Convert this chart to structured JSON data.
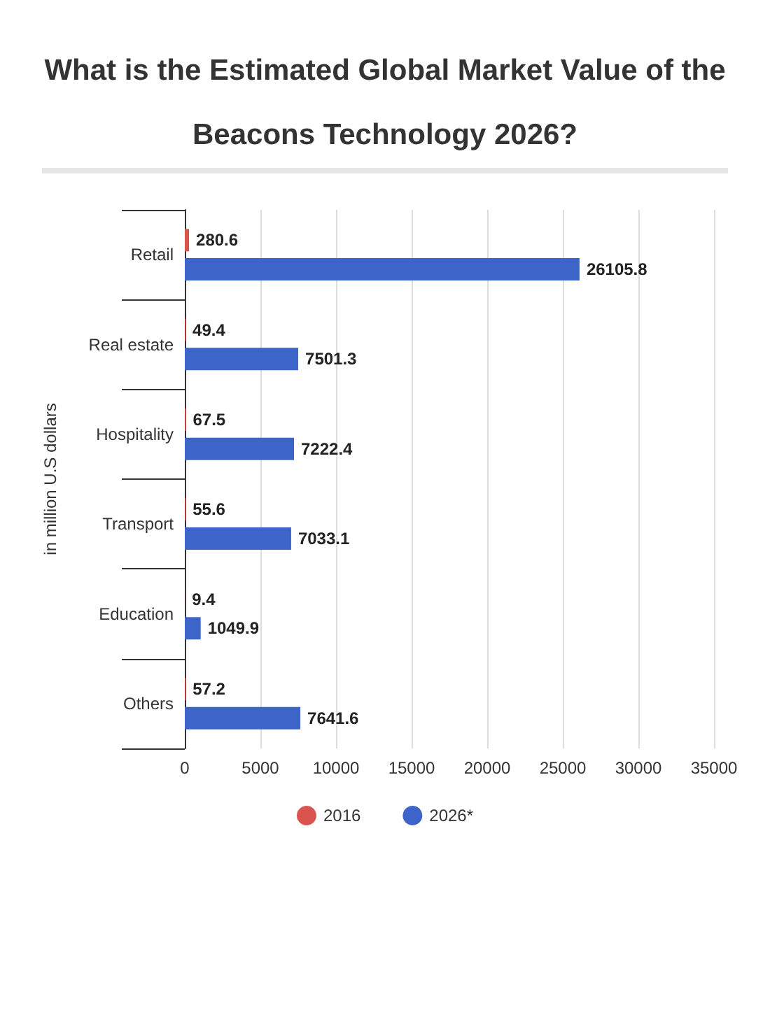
{
  "chart_data": {
    "type": "bar",
    "orientation": "horizontal",
    "title": "What is the Estimated Global Market Value of the Beacons Technology 2026?",
    "ylabel": "in million U.S dollars",
    "categories": [
      "Retail",
      "Real estate",
      "Hospitality",
      "Transport",
      "Education",
      "Others"
    ],
    "series": [
      {
        "name": "2016",
        "color": "#d9534f",
        "values": [
          280.6,
          49.4,
          67.5,
          55.6,
          9.4,
          57.2
        ]
      },
      {
        "name": "2026*",
        "color": "#3d64c8",
        "values": [
          26105.8,
          7501.3,
          7222.4,
          7033.1,
          1049.9,
          7641.6
        ]
      }
    ],
    "xlim": [
      0,
      35000
    ],
    "xticks": [
      0,
      5000,
      10000,
      15000,
      20000,
      25000,
      30000,
      35000
    ],
    "grid": "x",
    "legend": "bottom",
    "data_labels": true
  }
}
